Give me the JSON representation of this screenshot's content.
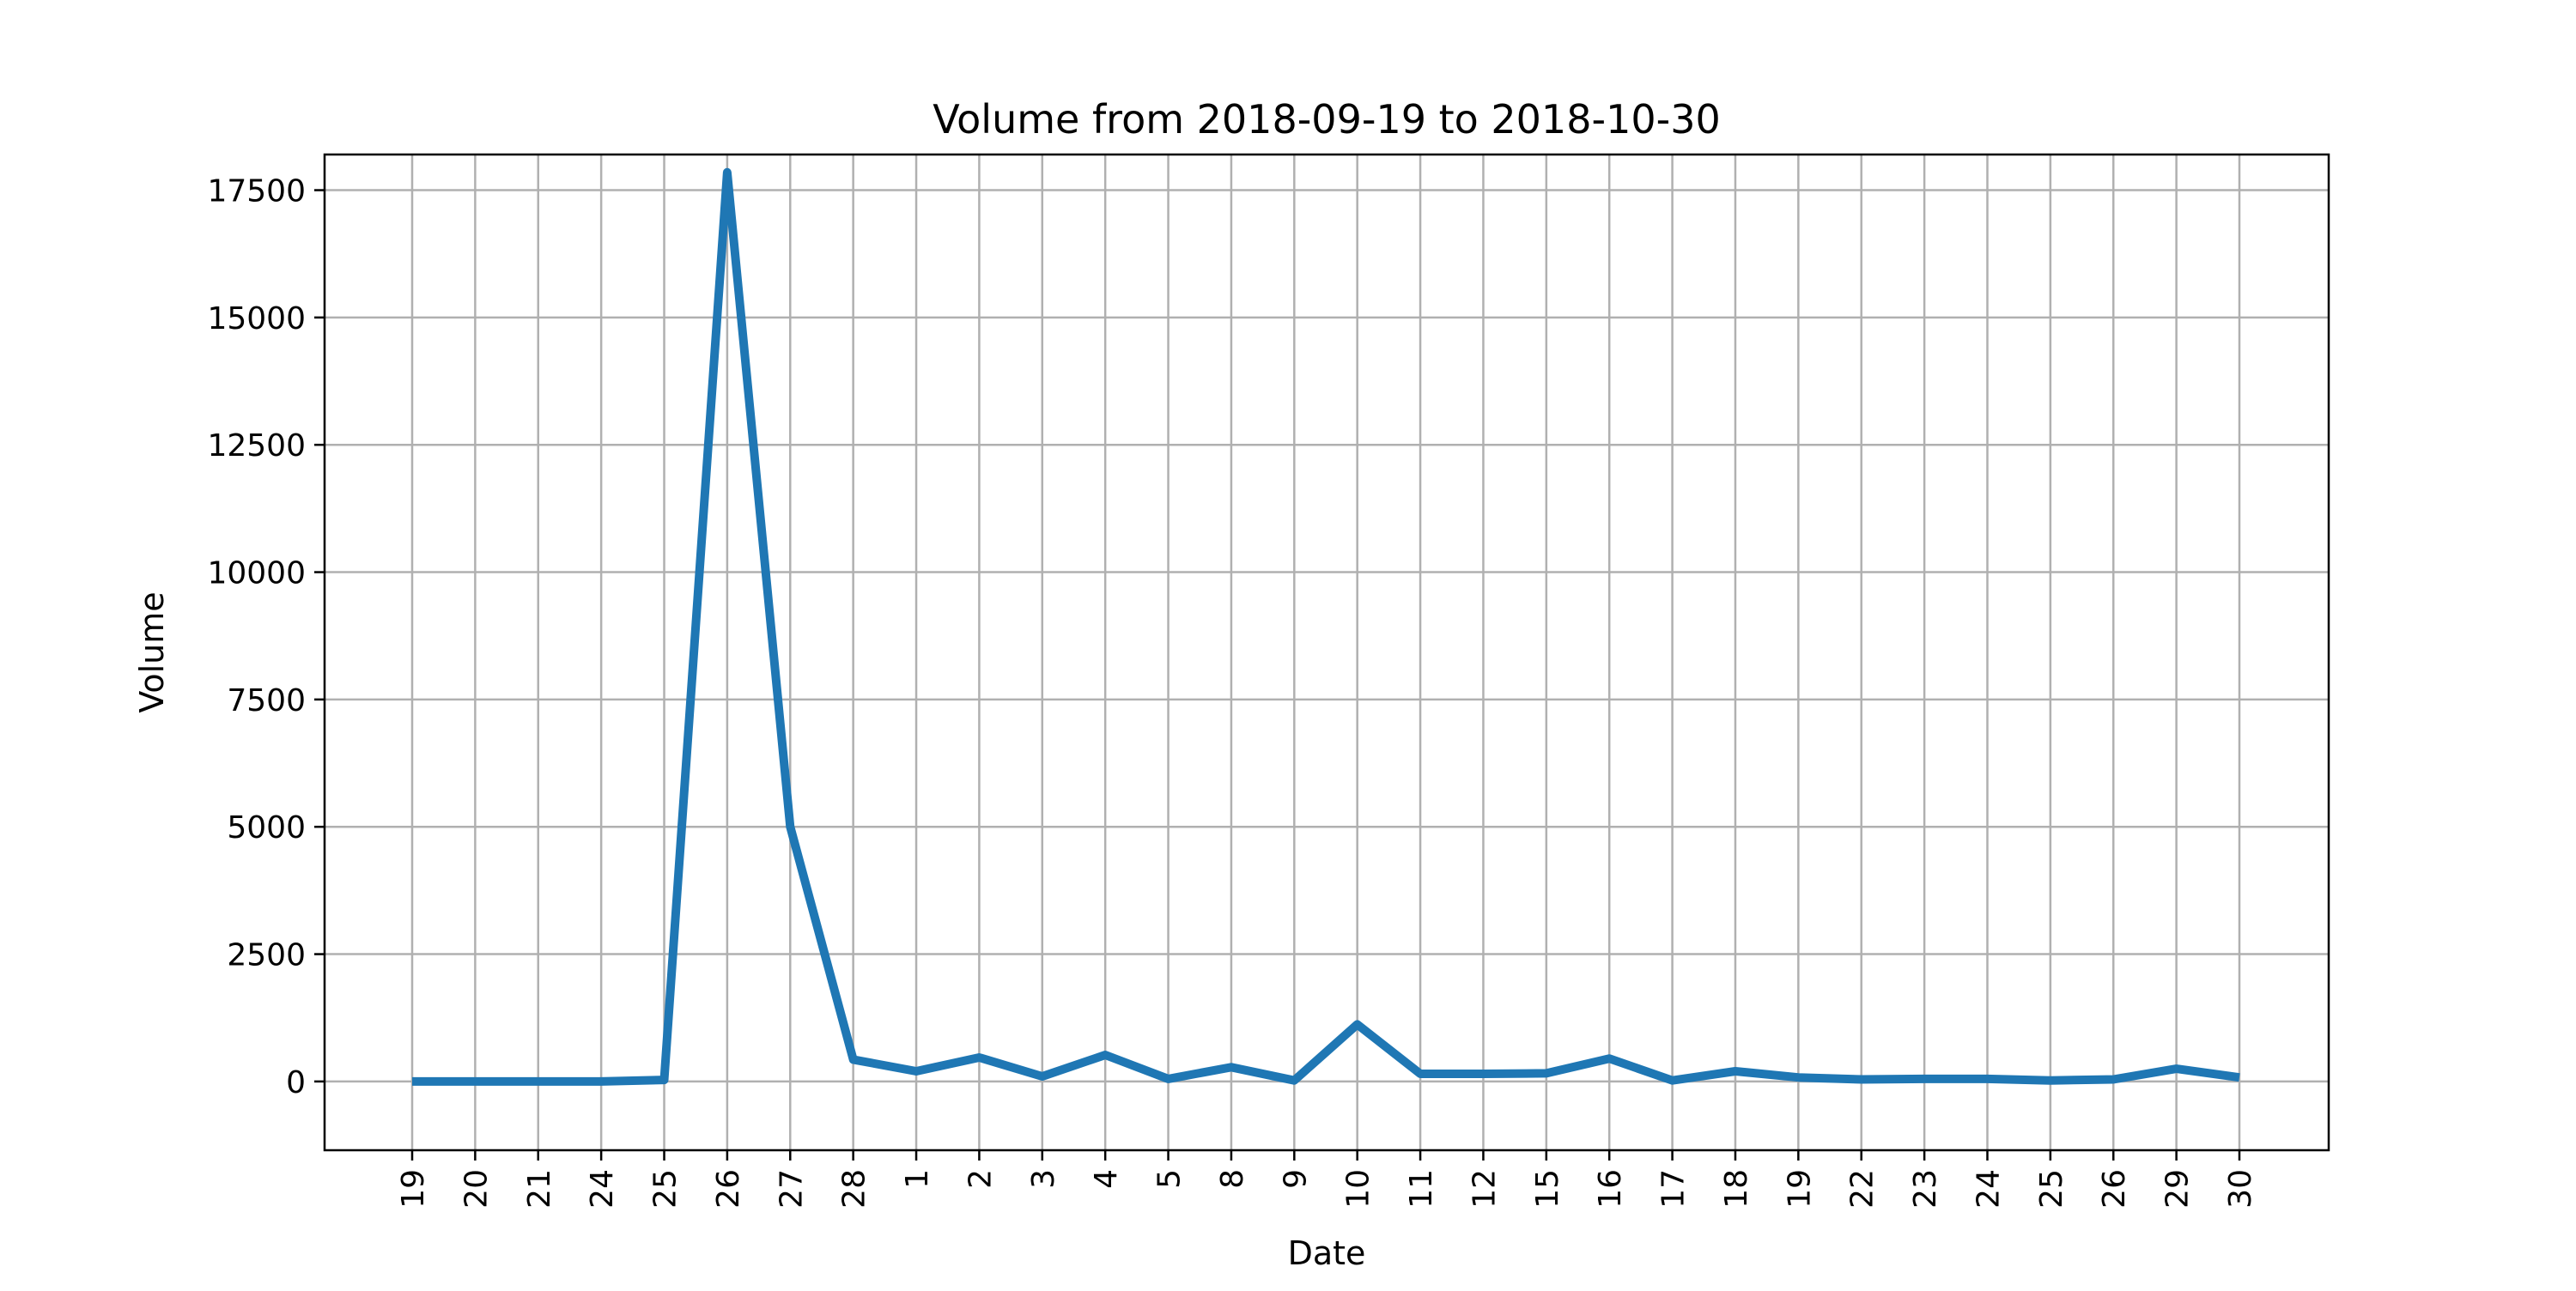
{
  "chart_data": {
    "type": "line",
    "title": "Volume from 2018-09-19 to 2018-10-30",
    "xlabel": "Date",
    "ylabel": "Volume",
    "categories": [
      "19",
      "20",
      "21",
      "24",
      "25",
      "26",
      "27",
      "28",
      "1",
      "2",
      "3",
      "4",
      "5",
      "8",
      "9",
      "10",
      "11",
      "12",
      "15",
      "16",
      "17",
      "18",
      "19",
      "22",
      "23",
      "24",
      "25",
      "26",
      "29",
      "30"
    ],
    "series": [
      {
        "values": [
          0,
          0,
          0,
          0,
          30,
          17850,
          5000,
          430,
          200,
          470,
          100,
          520,
          50,
          280,
          20,
          1120,
          150,
          150,
          160,
          450,
          20,
          200,
          80,
          40,
          50,
          50,
          20,
          40,
          250,
          80
        ],
        "color": "#1f77b4"
      }
    ],
    "ylim": [
      -1350,
      18200
    ],
    "yticks": [
      0,
      2500,
      5000,
      7500,
      10000,
      12500,
      15000,
      17500
    ],
    "ytick_labels": [
      "0",
      "2500",
      "5000",
      "7500",
      "10000",
      "12500",
      "15000",
      "17500"
    ],
    "grid": true,
    "legend": false
  }
}
